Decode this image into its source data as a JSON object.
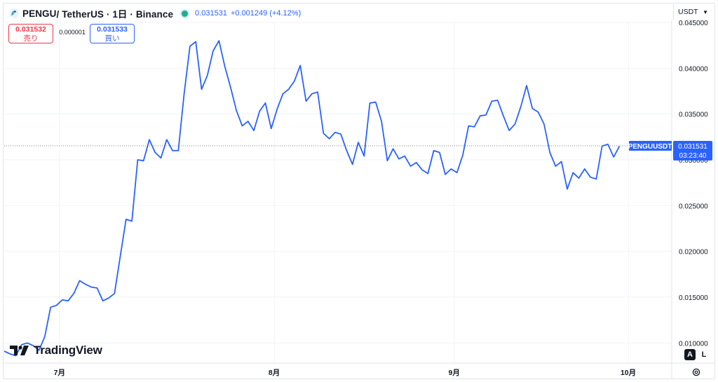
{
  "header": {
    "symbol": "PENGU",
    "pair_rest": " / TetherUS · 1日 · Binance",
    "price": "0.031531",
    "change": "+0.001249 (+4.12%)",
    "status_color": "#22ab94"
  },
  "trade": {
    "sell_value": "0.031532",
    "sell_label": "売り",
    "spread": "0.000001",
    "buy_value": "0.031533",
    "buy_label": "買い"
  },
  "currency": {
    "label": "USDT"
  },
  "price_label": {
    "symbol": "PENGUUSDT",
    "price": "0.031531",
    "countdown": "03:23:40"
  },
  "logo": {
    "text": "TradingView"
  },
  "scale_buttons": {
    "auto": "A",
    "log": "L"
  },
  "colors": {
    "line": "#2962ff",
    "accent": "#2962ff",
    "sell": "#f23645",
    "grid": "#f0f3fa"
  },
  "chart_data": {
    "type": "line",
    "series": [
      {
        "values": [
          0.0091,
          0.0088,
          0.0086,
          0.0098,
          0.01,
          0.0097,
          0.0092,
          0.0107,
          0.0139,
          0.0141,
          0.0147,
          0.0146,
          0.0154,
          0.0168,
          0.0164,
          0.0161,
          0.016,
          0.0146,
          0.0149,
          0.0154,
          0.0195,
          0.0235,
          0.0233,
          0.03,
          0.0299,
          0.0322,
          0.0308,
          0.0302,
          0.0322,
          0.031,
          0.031,
          0.0372,
          0.0424,
          0.0429,
          0.0377,
          0.0392,
          0.0419,
          0.043,
          0.0402,
          0.0379,
          0.0354,
          0.0337,
          0.0342,
          0.0332,
          0.0353,
          0.0362,
          0.0334,
          0.0355,
          0.0372,
          0.0377,
          0.0386,
          0.0403,
          0.0364,
          0.0372,
          0.0374,
          0.0329,
          0.0323,
          0.033,
          0.0328,
          0.031,
          0.0295,
          0.0319,
          0.0304,
          0.0362,
          0.0363,
          0.0342,
          0.0299,
          0.0312,
          0.0301,
          0.0304,
          0.0293,
          0.0297,
          0.0289,
          0.0285,
          0.031,
          0.0308,
          0.0284,
          0.029,
          0.0286,
          0.0305,
          0.0337,
          0.0336,
          0.0348,
          0.0349,
          0.0364,
          0.0365,
          0.0348,
          0.0332,
          0.0339,
          0.0358,
          0.0381,
          0.0356,
          0.0352,
          0.0339,
          0.0308,
          0.0293,
          0.0298,
          0.0268,
          0.0286,
          0.028,
          0.029,
          0.0281,
          0.0279,
          0.0315,
          0.0317,
          0.0303,
          0.0315
        ]
      }
    ],
    "ylim": [
      0.0078,
      0.045
    ],
    "yticks": [
      "0.045000",
      "0.040000",
      "0.035000",
      "0.030000",
      "0.025000",
      "0.020000",
      "0.015000",
      "0.010000"
    ],
    "xticks": [
      "7月",
      "8月",
      "9月",
      "10月"
    ],
    "last_price": 0.031531,
    "grid": true
  }
}
